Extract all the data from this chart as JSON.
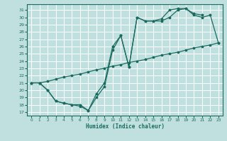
{
  "xlabel": "Humidex (Indice chaleur)",
  "bg_color": "#c0e0e0",
  "grid_color": "#ffffff",
  "line_color": "#1a6b5e",
  "xlim": [
    -0.5,
    23.5
  ],
  "ylim": [
    16.5,
    31.8
  ],
  "xticks": [
    0,
    1,
    2,
    3,
    4,
    5,
    6,
    7,
    8,
    9,
    10,
    11,
    12,
    13,
    14,
    15,
    16,
    17,
    18,
    19,
    20,
    21,
    22,
    23
  ],
  "yticks": [
    17,
    18,
    19,
    20,
    21,
    22,
    23,
    24,
    25,
    26,
    27,
    28,
    29,
    30,
    31
  ],
  "series1_x": [
    0,
    1,
    2,
    3,
    4,
    5,
    6,
    7,
    8,
    9,
    10,
    11,
    12,
    13,
    14,
    15,
    16,
    17,
    18,
    19,
    20,
    21
  ],
  "series1_y": [
    21.0,
    21.0,
    20.0,
    18.5,
    18.2,
    18.0,
    17.8,
    17.2,
    19.5,
    21.0,
    26.0,
    27.5,
    23.2,
    30.0,
    29.5,
    29.5,
    29.8,
    31.0,
    31.2,
    31.2,
    30.5,
    30.3
  ],
  "series2_x": [
    0,
    1,
    2,
    3,
    4,
    5,
    6,
    7,
    8,
    9,
    10,
    11,
    12,
    13,
    14,
    15,
    16,
    17,
    18,
    19,
    20,
    21,
    22,
    23
  ],
  "series2_y": [
    21.0,
    21.0,
    20.0,
    18.5,
    18.2,
    18.0,
    18.0,
    17.2,
    19.0,
    20.5,
    25.5,
    27.5,
    23.2,
    30.0,
    29.5,
    29.5,
    29.5,
    30.0,
    31.0,
    31.2,
    30.3,
    30.0,
    30.3,
    26.5
  ],
  "series3_x": [
    0,
    1,
    2,
    3,
    4,
    5,
    6,
    7,
    8,
    9,
    10,
    11,
    12,
    13,
    14,
    15,
    16,
    17,
    18,
    19,
    20,
    21,
    22,
    23
  ],
  "series3_y": [
    21.0,
    21.0,
    21.2,
    21.5,
    21.8,
    22.0,
    22.2,
    22.5,
    22.8,
    23.0,
    23.3,
    23.5,
    23.8,
    24.0,
    24.2,
    24.5,
    24.8,
    25.0,
    25.2,
    25.5,
    25.8,
    26.0,
    26.2,
    26.5
  ]
}
